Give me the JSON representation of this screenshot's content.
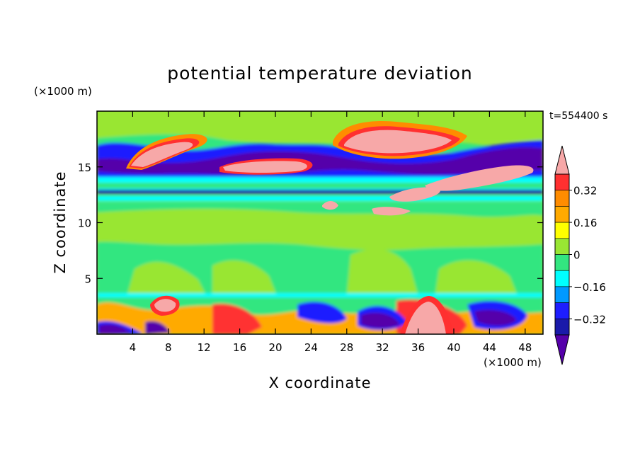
{
  "chart_data": {
    "type": "heatmap",
    "title": "potential temperature deviation",
    "xlabel": "X coordinate",
    "ylabel": "Z coordinate",
    "x_unit": "(×1000 m)",
    "y_unit": "(×1000 m)",
    "time_label": "t=554400 s",
    "xlim": [
      0,
      50
    ],
    "ylim": [
      0,
      20
    ],
    "x_ticks": [
      4,
      8,
      12,
      16,
      20,
      24,
      28,
      32,
      36,
      40,
      44,
      48
    ],
    "y_ticks": [
      5,
      10,
      15
    ],
    "colorbar": {
      "labeled_levels": [
        0.32,
        0.16,
        0,
        -0.16,
        -0.32
      ],
      "levels": [
        0.4,
        0.32,
        0.24,
        0.16,
        0.08,
        0,
        -0.08,
        -0.16,
        -0.24,
        -0.32,
        -0.4
      ],
      "colors": [
        "#f7a8a8",
        "#ff3030",
        "#ff8c00",
        "#ffaa00",
        "#ffff00",
        "#99e633",
        "#33e680",
        "#00ffff",
        "#0099ff",
        "#1e1eff",
        "#1a1aaa",
        "#5500aa"
      ]
    },
    "features": [
      {
        "x": [
          4.5,
          10.5
        ],
        "z": [
          14.7,
          17.3
        ],
        "value": 0.45
      },
      {
        "x": [
          14.5,
          23.5
        ],
        "z": [
          14.6,
          15.8
        ],
        "value": 0.45
      },
      {
        "x": [
          28.5,
          39.5
        ],
        "z": [
          15.8,
          18.0
        ],
        "value": 0.45
      },
      {
        "x": [
          37,
          48.5
        ],
        "z": [
          13.5,
          14.7
        ],
        "value": 0.45
      },
      {
        "x": [
          33,
          38.5
        ],
        "z": [
          0.3,
          3.2
        ],
        "value": 0.45
      },
      {
        "x": [
          6.5,
          10
        ],
        "z": [
          1.5,
          3.3
        ],
        "value": 0.45
      },
      {
        "x": [
          28,
          38
        ],
        "z": [
          12.2,
          13.2
        ],
        "value": 0.45
      },
      {
        "x": [
          8,
          48
        ],
        "z": [
          13.0,
          14.0
        ],
        "value": -0.45
      },
      {
        "x": [
          22,
          47
        ],
        "z": [
          15.6,
          16.6
        ],
        "value": -0.45
      },
      {
        "x": [
          0,
          50
        ],
        "z": [
          12.3,
          12.7
        ],
        "value": -0.3
      }
    ]
  }
}
